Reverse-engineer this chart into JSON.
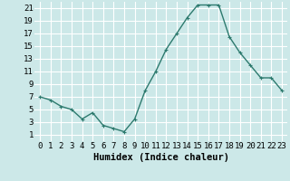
{
  "x": [
    0,
    1,
    2,
    3,
    4,
    5,
    6,
    7,
    8,
    9,
    10,
    11,
    12,
    13,
    14,
    15,
    16,
    17,
    18,
    19,
    20,
    21,
    22,
    23
  ],
  "y": [
    7,
    6.5,
    5.5,
    5,
    3.5,
    4.5,
    2.5,
    2,
    1.5,
    3.5,
    8,
    11,
    14.5,
    17,
    19.5,
    21.5,
    21.5,
    21.5,
    16.5,
    14,
    12,
    10,
    10,
    8
  ],
  "line_color": "#2d7a6e",
  "marker": "+",
  "marker_size": 3,
  "linewidth": 1.0,
  "xlabel": "Humidex (Indice chaleur)",
  "ylabel": "",
  "xlim": [
    -0.5,
    23.5
  ],
  "ylim": [
    0,
    22
  ],
  "yticks": [
    1,
    3,
    5,
    7,
    9,
    11,
    13,
    15,
    17,
    19,
    21
  ],
  "xticks": [
    0,
    1,
    2,
    3,
    4,
    5,
    6,
    7,
    8,
    9,
    10,
    11,
    12,
    13,
    14,
    15,
    16,
    17,
    18,
    19,
    20,
    21,
    22,
    23
  ],
  "xtick_labels": [
    "0",
    "1",
    "2",
    "3",
    "4",
    "5",
    "6",
    "7",
    "8",
    "9",
    "10",
    "11",
    "12",
    "13",
    "14",
    "15",
    "16",
    "17",
    "18",
    "19",
    "20",
    "21",
    "22",
    "23"
  ],
  "background_color": "#cce8e8",
  "grid_color": "#ffffff",
  "tick_fontsize": 6.5,
  "xlabel_fontsize": 7.5
}
